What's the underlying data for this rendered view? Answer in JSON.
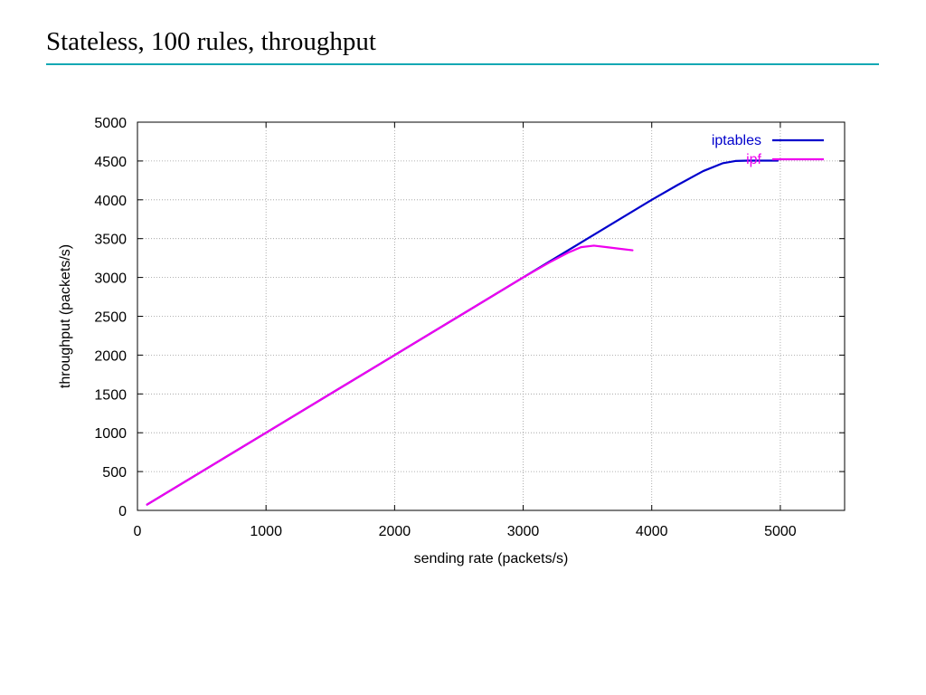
{
  "slide": {
    "title": "Stateless, 100 rules, throughput",
    "accent_color": "#14a8b4"
  },
  "chart_data": {
    "type": "line",
    "title": "",
    "xlabel": "sending rate (packets/s)",
    "ylabel": "throughput (packets/s)",
    "xlim": [
      0,
      5500
    ],
    "ylim": [
      0,
      5000
    ],
    "xticks": [
      0,
      1000,
      2000,
      3000,
      4000,
      5000
    ],
    "yticks": [
      0,
      500,
      1000,
      1500,
      2000,
      2500,
      3000,
      3500,
      4000,
      4500,
      5000
    ],
    "grid": true,
    "legend_position": "top-right",
    "series": [
      {
        "name": "iptables",
        "color": "#0000cc",
        "x": [
          75,
          1000,
          2000,
          3000,
          3300,
          3500,
          3800,
          4000,
          4200,
          4400,
          4550,
          4650,
          4750,
          4850,
          4980
        ],
        "y": [
          75,
          1000,
          2000,
          3000,
          3300,
          3500,
          3800,
          4000,
          4190,
          4370,
          4470,
          4500,
          4505,
          4505,
          4505
        ]
      },
      {
        "name": "ipf",
        "color": "#ee00ee",
        "x": [
          75,
          1000,
          2000,
          3000,
          3200,
          3350,
          3450,
          3550,
          3650,
          3750,
          3850
        ],
        "y": [
          75,
          1000,
          2000,
          3000,
          3190,
          3320,
          3390,
          3410,
          3390,
          3370,
          3350
        ]
      }
    ]
  }
}
